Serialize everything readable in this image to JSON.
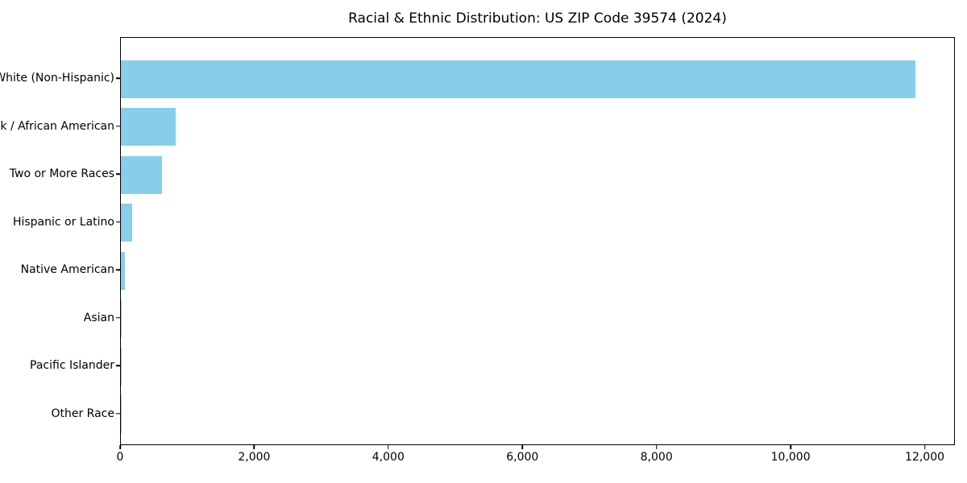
{
  "chart_data": {
    "type": "bar",
    "orientation": "horizontal",
    "title": "Racial & Ethnic Distribution: US ZIP Code 39574 (2024)",
    "categories": [
      "White (Non-Hispanic)",
      "Black / African American",
      "Two or More Races",
      "Hispanic or Latino",
      "Native American",
      "Asian",
      "Pacific Islander",
      "Other Race"
    ],
    "values": [
      11850,
      820,
      615,
      170,
      60,
      10,
      5,
      5
    ],
    "xlabel": "",
    "ylabel": "",
    "xlim": [
      0,
      12450
    ],
    "x_ticks": [
      0,
      2000,
      4000,
      6000,
      8000,
      10000,
      12000
    ],
    "x_tick_labels": [
      "0",
      "2,000",
      "4,000",
      "6,000",
      "8,000",
      "10,000",
      "12,000"
    ],
    "bar_color": "#87CEEB",
    "background_color": "#ffffff",
    "axis_color": "#000000",
    "grid": false,
    "legend": false
  }
}
